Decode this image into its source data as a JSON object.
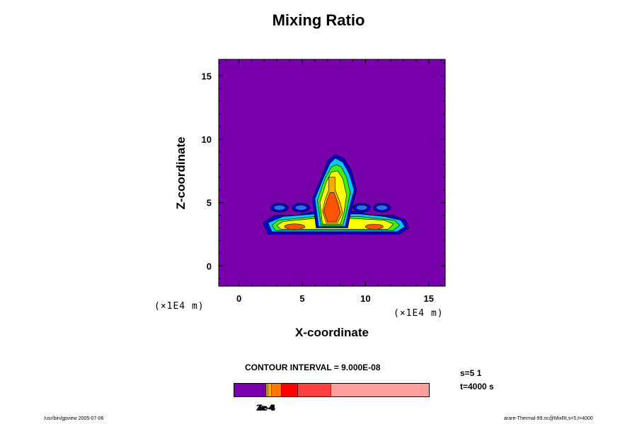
{
  "chart_data": {
    "type": "heatmap",
    "title": "Mixing Ratio",
    "xlabel": "X-coordinate",
    "ylabel": "Z-coordinate",
    "x_unit": "(×1E4 m)",
    "y_unit": "(×1E4 m)",
    "xlim": [
      -1.6,
      16.3
    ],
    "ylim": [
      -1.6,
      16.3
    ],
    "x_ticks": [
      0,
      5,
      10,
      15
    ],
    "y_ticks": [
      0,
      5,
      10,
      15
    ],
    "x_tick_labels": [
      "0",
      "5",
      "10",
      "15"
    ],
    "y_tick_labels": [
      "0",
      "5",
      "10",
      "15"
    ],
    "grid": false,
    "background_color": "#7700aa",
    "contour_interval": "CONTOUR INTERVAL = 9.000E-08",
    "fill_levels": [
      {
        "color": "#7700aa"
      },
      {
        "color": "#0000cc"
      },
      {
        "color": "#2a6dff"
      },
      {
        "color": "#00c8ff"
      },
      {
        "color": "#00e090"
      },
      {
        "color": "#44ee00"
      },
      {
        "color": "#ccee00"
      },
      {
        "color": "#ffff00"
      },
      {
        "color": "#ffaa00"
      },
      {
        "color": "#ff5500"
      },
      {
        "color": "#ff2200"
      }
    ],
    "colorbar": {
      "segments": [
        {
          "color": "#7700aa",
          "fraction": 0.165
        },
        {
          "color": "#c8d400",
          "fraction": 0.008
        },
        {
          "color": "#ffaa00",
          "fraction": 0.02
        },
        {
          "color": "#ff7700",
          "fraction": 0.05
        },
        {
          "color": "#ff0000",
          "fraction": 0.083
        },
        {
          "color": "#ff4040",
          "fraction": 0.17
        },
        {
          "color": "#ff9f9f",
          "fraction": 0.504
        }
      ],
      "tick_labels_overlapping": [
        "2e-4",
        "4e-4",
        "6e-4"
      ]
    }
  },
  "info": {
    "s": "s=5 1",
    "t": "t=4000 s"
  },
  "footer": {
    "left": "/usr/bin/gpview 2005-07-06",
    "right": "arare-Thermal-99.nc@MixRt,s=5,t=4000"
  }
}
